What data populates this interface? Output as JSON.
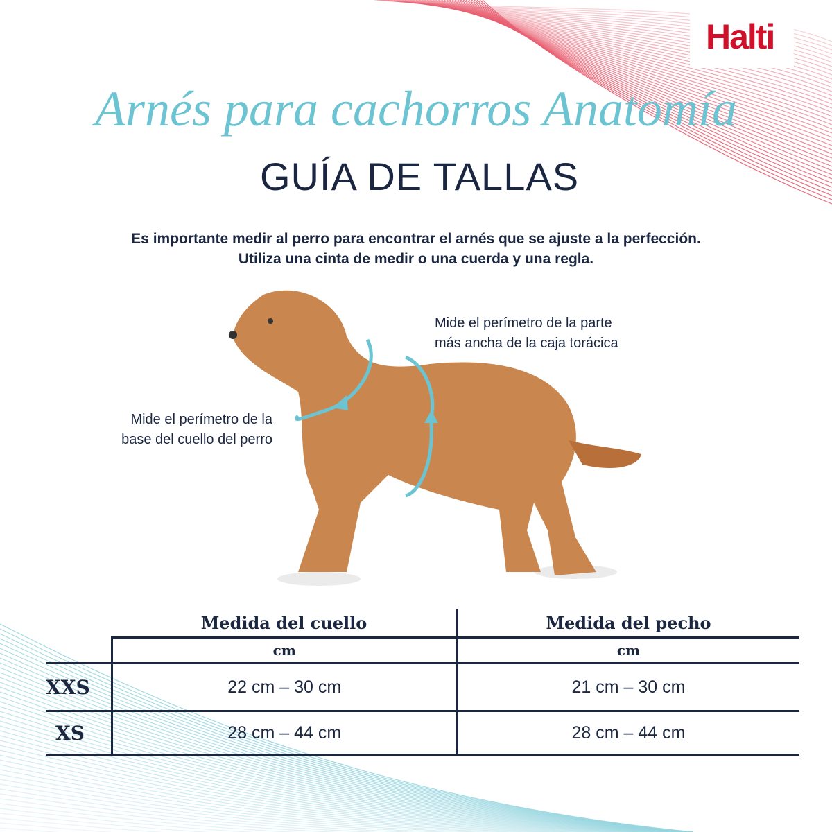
{
  "brand": {
    "logo_text": "Halti",
    "color": "#d0112b"
  },
  "header": {
    "title": "Arnés para cachorros Anatomía",
    "subtitle": "GUÍA DE TALLAS"
  },
  "intro": {
    "line1": "Es importante medir al perro para encontrar el arnés que se ajuste a la perfección.",
    "line2": "Utiliza una cinta de medir o una cuerda y una regla."
  },
  "annotations": {
    "chest": {
      "line1": "Mide el perímetro de la parte",
      "line2": "más ancha de la caja torácica"
    },
    "neck": {
      "line1": "Mide el perímetro de la",
      "line2": "base del cuello del perro"
    }
  },
  "table": {
    "columns": [
      {
        "label": "Medida del cuello",
        "unit": "cm"
      },
      {
        "label": "Medida del pecho",
        "unit": "cm"
      }
    ],
    "rows": [
      {
        "size": "XXS",
        "neck": "22 cm – 30 cm",
        "chest": "21 cm – 30 cm"
      },
      {
        "size": "XS",
        "neck": "28 cm – 44 cm",
        "chest": "28 cm – 44 cm"
      }
    ]
  },
  "colors": {
    "navy": "#1b2640",
    "teal": "#6cc4d2",
    "red": "#d0112b",
    "dog": "#c9874f"
  }
}
